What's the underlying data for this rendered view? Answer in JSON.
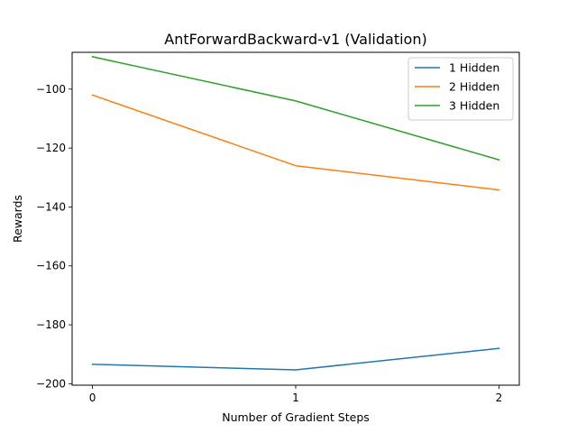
{
  "chart_data": {
    "type": "line",
    "title": "AntForwardBackward-v1 (Validation)",
    "xlabel": "Number of Gradient Steps",
    "ylabel": "Rewards",
    "x": [
      0,
      1,
      2
    ],
    "xticks": [
      0,
      1,
      2
    ],
    "yticks": [
      -200,
      -180,
      -160,
      -140,
      -120,
      -100
    ],
    "xlim": [
      -0.1,
      2.1
    ],
    "ylim": [
      -200.5,
      -87.5
    ],
    "grid": false,
    "legend_position": "top-right",
    "series": [
      {
        "name": "1 Hidden",
        "color": "#1f77b4",
        "values": [
          -193.4,
          -195.3,
          -188.0
        ]
      },
      {
        "name": "2 Hidden",
        "color": "#ff7f0e",
        "values": [
          -102.0,
          -126.0,
          -134.2
        ]
      },
      {
        "name": "3 Hidden",
        "color": "#2ca02c",
        "values": [
          -89.0,
          -104.0,
          -124.0
        ]
      }
    ]
  }
}
